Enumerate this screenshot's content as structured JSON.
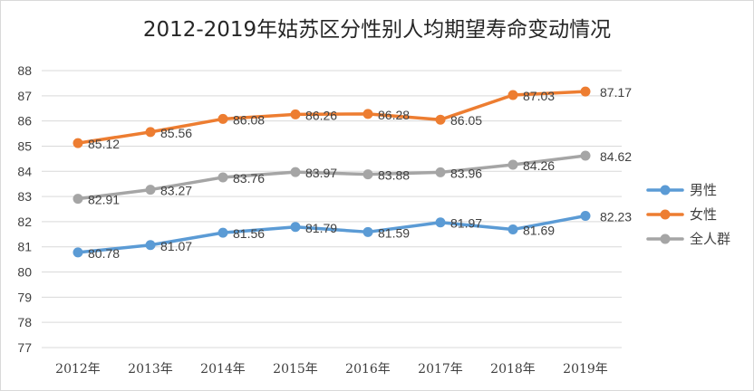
{
  "chart_data": {
    "type": "line",
    "title": "2012-2019年姑苏区分性别人均期望寿命变动情况",
    "categories": [
      "2012年",
      "2013年",
      "2014年",
      "2015年",
      "2016年",
      "2017年",
      "2018年",
      "2019年"
    ],
    "series": [
      {
        "name": "男性",
        "color": "#5b9bd5",
        "values": [
          80.78,
          81.07,
          81.56,
          81.79,
          81.59,
          81.97,
          81.69,
          82.23
        ]
      },
      {
        "name": "女性",
        "color": "#ed7d31",
        "values": [
          85.12,
          85.56,
          86.08,
          86.26,
          86.28,
          86.05,
          87.03,
          87.17
        ]
      },
      {
        "name": "全人群",
        "color": "#a5a5a5",
        "values": [
          82.91,
          83.27,
          83.76,
          83.97,
          83.88,
          83.96,
          84.26,
          84.62
        ]
      }
    ],
    "ylim": [
      77,
      88
    ],
    "yticks": [
      77,
      78,
      79,
      80,
      81,
      82,
      83,
      84,
      85,
      86,
      87,
      88
    ],
    "grid": true,
    "legend_position": "right"
  }
}
